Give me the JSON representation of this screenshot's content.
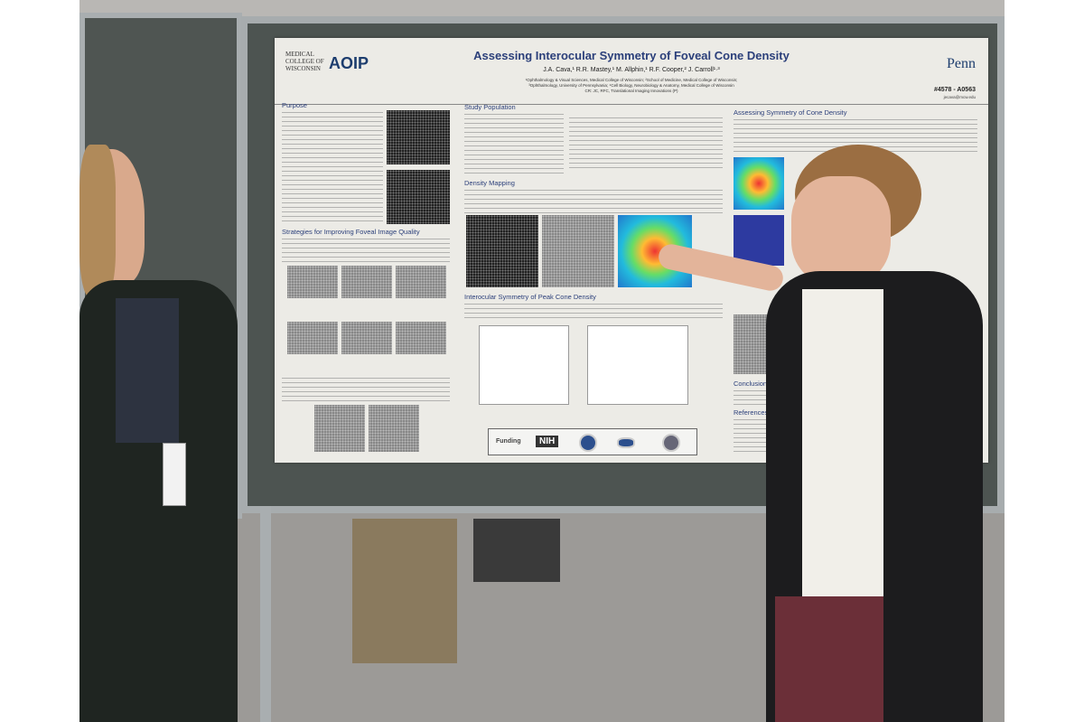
{
  "poster": {
    "title": "Assessing Interocular Symmetry of Foveal Cone Density",
    "authors": "J.A. Cava,¹ R.R. Mastey,¹ M. Allphin,¹ R.F. Cooper,² J. Carroll¹·³",
    "affiliations": [
      "¹Ophthalmology & Visual Sciences, Medical College of Wisconsin; ²School of Medicine, Medical College of Wisconsin;",
      "³Ophthalmology, University of Pennsylvania; ⁴Cell Biology, Neurobiology & Anatomy, Medical College of Wisconsin",
      "CR: JC, RFC, Translational Imaging Innovations (P)"
    ],
    "logo_left": "MEDICAL COLLEGE OF WISCONSIN",
    "logo_aoip": "AOIP",
    "logo_right": "Penn",
    "poster_code": "#4578 - A0563",
    "email": "jecava@mcw.edu",
    "sections": {
      "purpose": "Purpose",
      "strategies": "Strategies for Improving Foveal Image Quality",
      "study_population": "Study Population",
      "density_mapping": "Density Mapping",
      "interocular": "Interocular Symmetry of Peak Cone Density",
      "assessing": "Assessing Symmetry of Cone Density",
      "conclusions": "Conclusions",
      "references": "References"
    },
    "funding": {
      "label": "Funding",
      "nih": "NIH"
    }
  }
}
